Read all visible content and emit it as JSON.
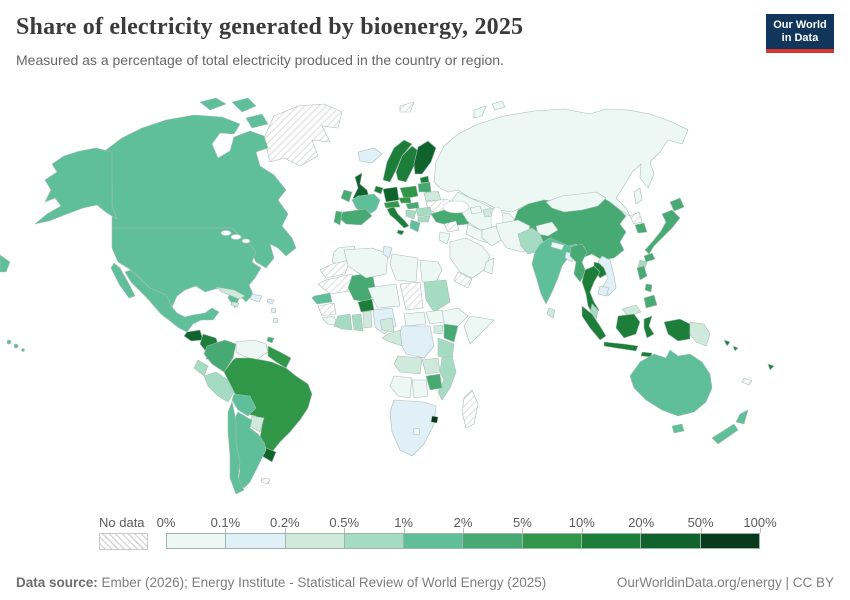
{
  "header": {
    "title": "Share of electricity generated by bioenergy, 2025",
    "subtitle": "Measured as a percentage of total electricity produced in the country or region."
  },
  "logo": {
    "line1": "Our World",
    "line2": "in Data",
    "bg_color": "#12355b",
    "accent_color": "#d7382d"
  },
  "legend": {
    "no_data_label": "No data",
    "tick_labels": [
      "0%",
      "0.1%",
      "0.2%",
      "0.5%",
      "1%",
      "2%",
      "5%",
      "10%",
      "20%",
      "50%",
      "100%"
    ],
    "bin_colors": [
      "#edf8f4",
      "#e1eff6",
      "#cfe9dc",
      "#a6dbc3",
      "#5fbf9b",
      "#47aa72",
      "#2f9747",
      "#1d7e39",
      "#11632d",
      "#07391d"
    ]
  },
  "footer": {
    "source_prefix": "Data source:",
    "source_text": " Ember (2026); Energy Institute - Statistical Review of World Energy (2025)",
    "link_text": "OurWorldinData.org/energy",
    "separator": " | ",
    "license_text": "CC BY"
  },
  "chart_data": {
    "type": "choropleth-map",
    "title": "Share of electricity generated by bioenergy, 2025",
    "unit": "% of total electricity",
    "scale_bins": [
      "0%",
      "0.1%",
      "0.2%",
      "0.5%",
      "1%",
      "2%",
      "5%",
      "10%",
      "20%",
      "50%",
      "100%"
    ],
    "note": "regions map country key to color-bin index (0 = 0-0.1% ... 9 = 50-100%), 'nd' = no data"
  },
  "map": {
    "regions": {
      "greenland": "nd",
      "canada": 4,
      "arctic-islands": 4,
      "alaska": 4,
      "hawaii": 4,
      "pacific-sliver": 4,
      "usa": 4,
      "baja-california": 4,
      "mexico": 4,
      "guatemala": 8,
      "honduras-nicaragua": 7,
      "costa-rica-panama": 5,
      "cuba": 2,
      "hispaniola": 1,
      "puerto-rico": 1,
      "jamaica": 2,
      "lesser-antilles": 1,
      "trinidad": 5,
      "colombia": 5,
      "venezuela": 0,
      "guyanas": 6,
      "ecuador": 3,
      "peru": 3,
      "brazil": 6,
      "bolivia": 4,
      "paraguay": 2,
      "uruguay": 8,
      "argentina": 4,
      "chile": 4,
      "falklands": "nd",
      "iceland": 1,
      "norway": 7,
      "sweden": 7,
      "finland": 8,
      "denmark": 8,
      "uk": 8,
      "ireland": 5,
      "estonia": 7,
      "latvia-lithuania": 5,
      "belarus": 2,
      "ukraine": "nd",
      "poland": 6,
      "germany": 8,
      "benelux": 7,
      "france": 4,
      "spain": 5,
      "portugal": 5,
      "switzerland-austria": 6,
      "czechia": 6,
      "italy": 7,
      "sicily": 7,
      "hungary": 5,
      "romania": 3,
      "balkans": 3,
      "bulgaria": 3,
      "greece": 4,
      "turkey": 5,
      "russia": 0,
      "novaya-zemlya": 0,
      "svalbard": "nd",
      "sakhalin": 0,
      "kazakhstan": 0,
      "central-asia": 0,
      "kyrgyz-tajik": 0,
      "caucasus": 0,
      "azerbaijan": 2,
      "china": 5,
      "mongolia": 0,
      "north-korea": "nd",
      "south-korea": 5,
      "japan-hokkaido": 5,
      "japan-honshu": 5,
      "japan-kyushu": 5,
      "taiwan": 3,
      "philippines-luzon": 5,
      "philippines-visayas": 5,
      "philippines-mindanao": 5,
      "india": 4,
      "pakistan": 3,
      "afghanistan": 0,
      "nepal": 0,
      "bangladesh": 1,
      "sri-lanka": 2,
      "myanmar": 5,
      "thailand": 7,
      "laos": 7,
      "vietnam": 1,
      "cambodia": 1,
      "malaysia-peninsula": 3,
      "malaysia-borneo": 2,
      "sumatra": 7,
      "java": 7,
      "kalimantan": 7,
      "sulawesi": 7,
      "west-papua": 7,
      "lesser-sunda": 7,
      "papua-new-guinea": 2,
      "solomon-islands": 7,
      "fiji": 7,
      "new-caledonia": "nd",
      "iran": 0,
      "iraq": 0,
      "syria": "nd",
      "israel-jordan": 0,
      "saudi-arabia": 0,
      "yemen": "nd",
      "oman": 0,
      "morocco": 0,
      "western-sahara": "nd",
      "mauritania": "nd",
      "senegal": 4,
      "guinea": "nd",
      "sierra-leone-liberia": 0,
      "ivory-coast": 3,
      "ghana": 3,
      "togo-benin": 2,
      "nigeria": 1,
      "mali": 5,
      "burkina-faso": 7,
      "niger": 0,
      "algeria": 0,
      "tunisia": 1,
      "libya": 0,
      "egypt": 0,
      "chad": "nd",
      "sudan": 3,
      "south-sudan": 0,
      "ethiopia": 0,
      "somalia": 0,
      "uganda": 2,
      "kenya": 5,
      "tanzania": 3,
      "drc": 1,
      "congo-gabon": 2,
      "cameroon": 2,
      "central-african-republic": 0,
      "angola": 2,
      "zambia": 2,
      "malawi": 3,
      "zimbabwe": 5,
      "mozambique": 3,
      "namibia": 0,
      "botswana": 0,
      "south-africa": 1,
      "eswatini": 9,
      "lesotho": 0,
      "madagascar": "nd",
      "australia": 4,
      "tasmania": 4,
      "new-zealand-north": 4,
      "new-zealand-south": 4
    }
  }
}
